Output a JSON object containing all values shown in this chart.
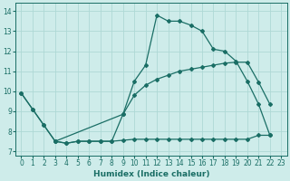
{
  "xlabel": "Humidex (Indice chaleur)",
  "background_color": "#ceecea",
  "grid_color": "#aed8d5",
  "line_color": "#1a6e65",
  "xlim": [
    -0.5,
    23.5
  ],
  "ylim": [
    6.8,
    14.4
  ],
  "xticks": [
    0,
    1,
    2,
    3,
    4,
    5,
    6,
    7,
    8,
    9,
    10,
    11,
    12,
    13,
    14,
    15,
    16,
    17,
    18,
    19,
    20,
    21,
    22,
    23
  ],
  "yticks": [
    7,
    8,
    9,
    10,
    11,
    12,
    13,
    14
  ],
  "line1_x": [
    0,
    1,
    2,
    3,
    4,
    5,
    6,
    7,
    8,
    9,
    10,
    11,
    12,
    13,
    14,
    15,
    16,
    17,
    18,
    19,
    20,
    21,
    22
  ],
  "line1_y": [
    9.9,
    9.1,
    8.3,
    7.5,
    7.4,
    7.5,
    7.5,
    7.5,
    7.5,
    8.85,
    10.5,
    11.3,
    13.8,
    13.5,
    13.5,
    13.3,
    13.0,
    12.1,
    12.0,
    11.5,
    10.5,
    9.35,
    7.8
  ],
  "line2_x": [
    0,
    1,
    2,
    3,
    9,
    10,
    11,
    12,
    13,
    14,
    15,
    16,
    17,
    18,
    19,
    20,
    21,
    22
  ],
  "line2_y": [
    9.9,
    9.1,
    8.3,
    7.5,
    8.85,
    9.8,
    10.3,
    10.6,
    10.8,
    11.0,
    11.1,
    11.2,
    11.3,
    11.4,
    11.45,
    11.45,
    10.45,
    9.35
  ],
  "line3_x": [
    3,
    4,
    5,
    6,
    7,
    8,
    9,
    10,
    11,
    12,
    13,
    14,
    15,
    16,
    17,
    18,
    19,
    20,
    21,
    22
  ],
  "line3_y": [
    7.5,
    7.4,
    7.5,
    7.5,
    7.5,
    7.5,
    7.55,
    7.6,
    7.6,
    7.6,
    7.6,
    7.6,
    7.6,
    7.6,
    7.6,
    7.6,
    7.6,
    7.6,
    7.8,
    7.8
  ]
}
